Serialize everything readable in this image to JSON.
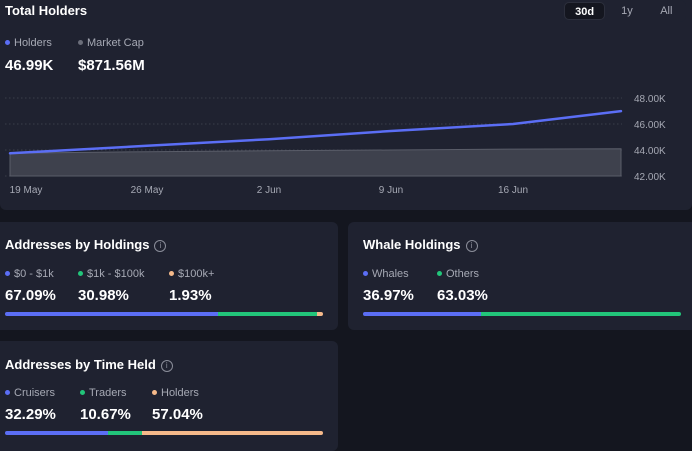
{
  "total_holders": {
    "title": "Total Holders",
    "tabs": [
      "30d",
      "1y",
      "All"
    ],
    "active_tab": "30d",
    "legend": [
      {
        "label": "Holders",
        "value": "46.99K",
        "color": "#5b6ef5"
      },
      {
        "label": "Market Cap",
        "value": "$871.56M",
        "color": "#6b6e7a"
      }
    ]
  },
  "chart_data": {
    "type": "line",
    "title": "Total Holders",
    "x": [
      "19 May",
      "26 May",
      "2 Jun",
      "9 Jun",
      "16 Jun",
      "21 Jun"
    ],
    "x_ticks": [
      "19 May",
      "26 May",
      "2 Jun",
      "9 Jun",
      "16 Jun"
    ],
    "series": [
      {
        "name": "Holders",
        "type": "line",
        "values": [
          43.75,
          44.32,
          44.83,
          45.46,
          46.0,
          46.99
        ]
      },
      {
        "name": "Market Cap",
        "type": "area",
        "values": [
          43.75,
          43.87,
          43.94,
          44.0,
          44.07,
          44.1
        ]
      }
    ],
    "yticks": [
      "48.00K",
      "46.00K",
      "44.00K",
      "42.00K"
    ],
    "ylim": [
      42,
      48
    ],
    "grid": true
  },
  "addresses_by_holdings": {
    "title": "Addresses by Holdings",
    "items": [
      {
        "label": "$0 - $1k",
        "value": "67.09%",
        "pct": 67.09,
        "color": "#5b6ef5"
      },
      {
        "label": "$1k - $100k",
        "value": "30.98%",
        "pct": 30.98,
        "color": "#22c57a"
      },
      {
        "label": "$100k+",
        "value": "1.93%",
        "pct": 1.93,
        "color": "#f5b98a"
      }
    ]
  },
  "whale_holdings": {
    "title": "Whale Holdings",
    "items": [
      {
        "label": "Whales",
        "value": "36.97%",
        "pct": 36.97,
        "color": "#5b6ef5"
      },
      {
        "label": "Others",
        "value": "63.03%",
        "pct": 63.03,
        "color": "#22c57a"
      }
    ]
  },
  "addresses_by_time_held": {
    "title": "Addresses by Time Held",
    "items": [
      {
        "label": "Cruisers",
        "value": "32.29%",
        "pct": 32.29,
        "color": "#5b6ef5"
      },
      {
        "label": "Traders",
        "value": "10.67%",
        "pct": 10.67,
        "color": "#22c57a"
      },
      {
        "label": "Holders",
        "value": "57.04%",
        "pct": 57.04,
        "color": "#f5b98a"
      }
    ]
  }
}
